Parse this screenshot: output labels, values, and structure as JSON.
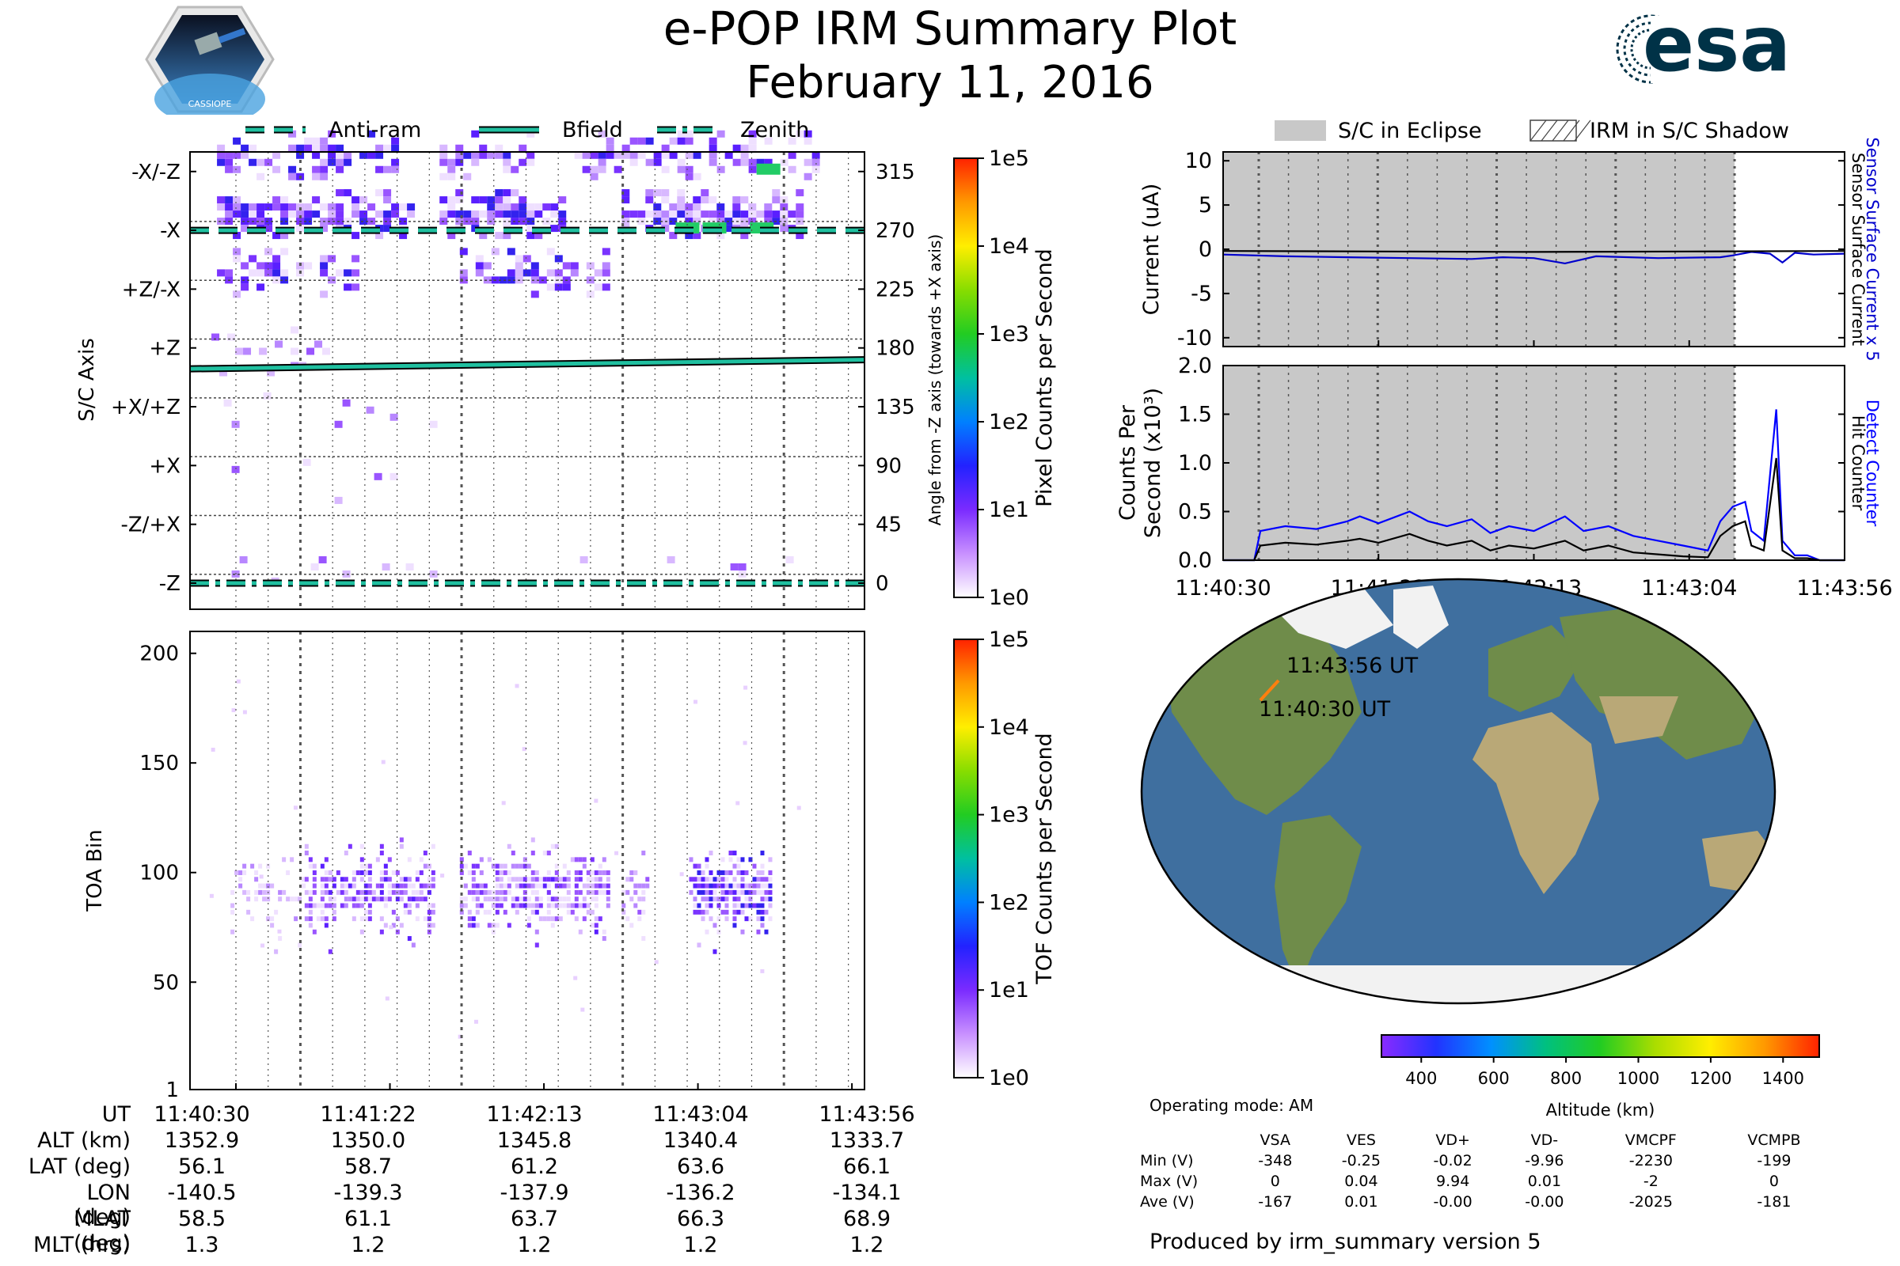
{
  "header": {
    "title_line1": "e-POP IRM Summary Plot",
    "title_line2": "February 11, 2016",
    "logo_left_text": "CASSIOPE",
    "logo_right_text": "esa"
  },
  "colors": {
    "zenith_line": "#20c0a0",
    "bfield_line": "#20c0a0",
    "antiram_line": "#20c0a0",
    "eclipse_fill": "#c8c8c8",
    "sensor_current": "#0000cc",
    "detect_counter": "#0000ff",
    "hit_counter": "#000000",
    "track": "#ff7f0e"
  },
  "times": [
    "11:40:30",
    "11:41:22",
    "11:42:13",
    "11:43:04",
    "11:43:56"
  ],
  "chart_data": [
    {
      "type": "heatmap",
      "name_key": "sc_axis",
      "legend": [
        "Anti-ram",
        "Bfield",
        "Zenith"
      ],
      "ylabel": "S/C Axis",
      "y_tick_labels_left": [
        "-X/-Z",
        "-X",
        "+Z/-X",
        "+Z",
        "+X/+Z",
        "+X",
        "-Z/+X",
        "-Z"
      ],
      "y_tick_labels_right": [
        315,
        270,
        225,
        180,
        135,
        90,
        45,
        0
      ],
      "ylabel_right": "Angle from -Z axis (towards +X axis)",
      "ylim": [
        -20,
        330
      ],
      "x_ticks": [
        "11:40:30",
        "11:41:22",
        "11:42:13",
        "11:43:04",
        "11:43:56"
      ],
      "lines": {
        "antiram_angle": 270,
        "zenith_angle": 0,
        "bfield_angle_start": 164,
        "bfield_angle_end": 171
      },
      "colorbar": {
        "label": "Pixel Counts per Second",
        "scale": "log",
        "ticks": [
          "1e0",
          "1e1",
          "1e2",
          "1e3",
          "1e4",
          "1e5"
        ]
      }
    },
    {
      "type": "heatmap",
      "name_key": "toa",
      "ylabel": "TOA Bin",
      "yticks": [
        1,
        50,
        100,
        150,
        200
      ],
      "ylim": [
        1,
        210
      ],
      "colorbar": {
        "label": "TOF Counts per Second",
        "scale": "log",
        "ticks": [
          "1e0",
          "1e1",
          "1e2",
          "1e3",
          "1e4",
          "1e5"
        ]
      }
    },
    {
      "type": "line",
      "name_key": "current",
      "ylabel": "Current (uA)",
      "yticks": [
        10,
        5,
        0,
        -5,
        -10
      ],
      "ylim": [
        -11,
        11
      ],
      "legend": [
        "S/C in Eclipse",
        "IRM in S/C Shadow"
      ],
      "right_labels": [
        "Sensor Surface Current x 5",
        "Sensor Surface Current"
      ],
      "eclipse_range_fraction": [
        0,
        0.823
      ],
      "series": [
        {
          "name": "Sensor Surface Current x 5",
          "x": [
            0,
            0.1,
            0.2,
            0.3,
            0.4,
            0.45,
            0.5,
            0.55,
            0.6,
            0.7,
            0.8,
            0.82,
            0.85,
            0.88,
            0.9,
            0.92,
            0.95,
            1.0
          ],
          "values": [
            -0.6,
            -0.8,
            -0.9,
            -1.0,
            -1.1,
            -0.9,
            -1.0,
            -1.6,
            -0.8,
            -1.0,
            -0.9,
            -0.7,
            -0.3,
            -0.5,
            -1.5,
            -0.4,
            -0.6,
            -0.5
          ]
        },
        {
          "name": "Sensor Surface Current",
          "x": [
            0,
            0.25,
            0.5,
            0.75,
            1.0
          ],
          "values": [
            -0.2,
            -0.25,
            -0.3,
            -0.25,
            -0.2
          ]
        }
      ]
    },
    {
      "type": "line",
      "name_key": "counts",
      "ylabel": "Counts Per Second (x10^3)",
      "yticks": [
        2.0,
        1.5,
        1.0,
        0.5,
        0.0
      ],
      "ylim": [
        0,
        2.0
      ],
      "right_labels": [
        "Detect Counter",
        "Hit Counter"
      ],
      "series": [
        {
          "name": "Detect Counter",
          "x": [
            0,
            0.05,
            0.06,
            0.1,
            0.15,
            0.2,
            0.22,
            0.25,
            0.3,
            0.33,
            0.36,
            0.4,
            0.43,
            0.46,
            0.5,
            0.55,
            0.58,
            0.62,
            0.66,
            0.7,
            0.74,
            0.78,
            0.8,
            0.82,
            0.84,
            0.85,
            0.87,
            0.89,
            0.9,
            0.92,
            0.94,
            0.96,
            1.0
          ],
          "values": [
            0.0,
            0.0,
            0.3,
            0.35,
            0.32,
            0.4,
            0.45,
            0.38,
            0.5,
            0.4,
            0.35,
            0.42,
            0.28,
            0.35,
            0.3,
            0.45,
            0.3,
            0.35,
            0.25,
            0.2,
            0.15,
            0.1,
            0.4,
            0.55,
            0.6,
            0.3,
            0.2,
            1.55,
            0.2,
            0.05,
            0.05,
            0.0,
            0.0
          ]
        },
        {
          "name": "Hit Counter",
          "x": [
            0,
            0.05,
            0.06,
            0.1,
            0.15,
            0.2,
            0.22,
            0.25,
            0.3,
            0.33,
            0.36,
            0.4,
            0.43,
            0.46,
            0.5,
            0.55,
            0.58,
            0.62,
            0.66,
            0.7,
            0.74,
            0.78,
            0.8,
            0.82,
            0.84,
            0.85,
            0.87,
            0.89,
            0.9,
            0.92,
            0.94,
            0.96,
            1.0
          ],
          "values": [
            0.0,
            0.0,
            0.15,
            0.18,
            0.16,
            0.2,
            0.22,
            0.18,
            0.27,
            0.2,
            0.15,
            0.2,
            0.1,
            0.15,
            0.12,
            0.2,
            0.1,
            0.15,
            0.08,
            0.06,
            0.04,
            0.03,
            0.25,
            0.35,
            0.4,
            0.15,
            0.1,
            1.05,
            0.1,
            0.02,
            0.02,
            0.0,
            0.0
          ]
        }
      ]
    }
  ],
  "map": {
    "start_label": "11:40:30 UT",
    "end_label": "11:43:56 UT",
    "colorbar": {
      "label": "Altitude (km)",
      "ticks": [
        400,
        600,
        800,
        1000,
        1200,
        1400
      ]
    }
  },
  "ephemeris": {
    "labels": [
      "UT",
      "ALT (km)",
      "LAT (deg)",
      "LON (deg)",
      "MLAT (deg)",
      "MLT (hrs)"
    ],
    "columns": [
      [
        "11:40:30",
        "1352.9",
        "56.1",
        "-140.5",
        "58.5",
        "1.3"
      ],
      [
        "11:41:22",
        "1350.0",
        "58.7",
        "-139.3",
        "61.1",
        "1.2"
      ],
      [
        "11:42:13",
        "1345.8",
        "61.2",
        "-137.9",
        "63.7",
        "1.2"
      ],
      [
        "11:43:04",
        "1340.4",
        "63.6",
        "-136.2",
        "66.3",
        "1.2"
      ],
      [
        "11:43:56",
        "1333.7",
        "66.1",
        "-134.1",
        "68.9",
        "1.2"
      ]
    ]
  },
  "operating_mode": "Operating mode: AM",
  "voltages": {
    "headers": [
      "VSA",
      "VES",
      "VD+",
      "VD-",
      "VMCPF",
      "VCMPB"
    ],
    "rows": [
      {
        "label": "Min (V)",
        "values": [
          "-348",
          "-0.25",
          "-0.02",
          "-9.96",
          "-2230",
          "-199"
        ]
      },
      {
        "label": "Max (V)",
        "values": [
          "0",
          "0.04",
          "9.94",
          "0.01",
          "-2",
          "0"
        ]
      },
      {
        "label": "Ave (V)",
        "values": [
          "-167",
          "0.01",
          "-0.00",
          "-0.00",
          "-2025",
          "-181"
        ]
      }
    ]
  },
  "footer": "Produced by irm_summary version 5"
}
